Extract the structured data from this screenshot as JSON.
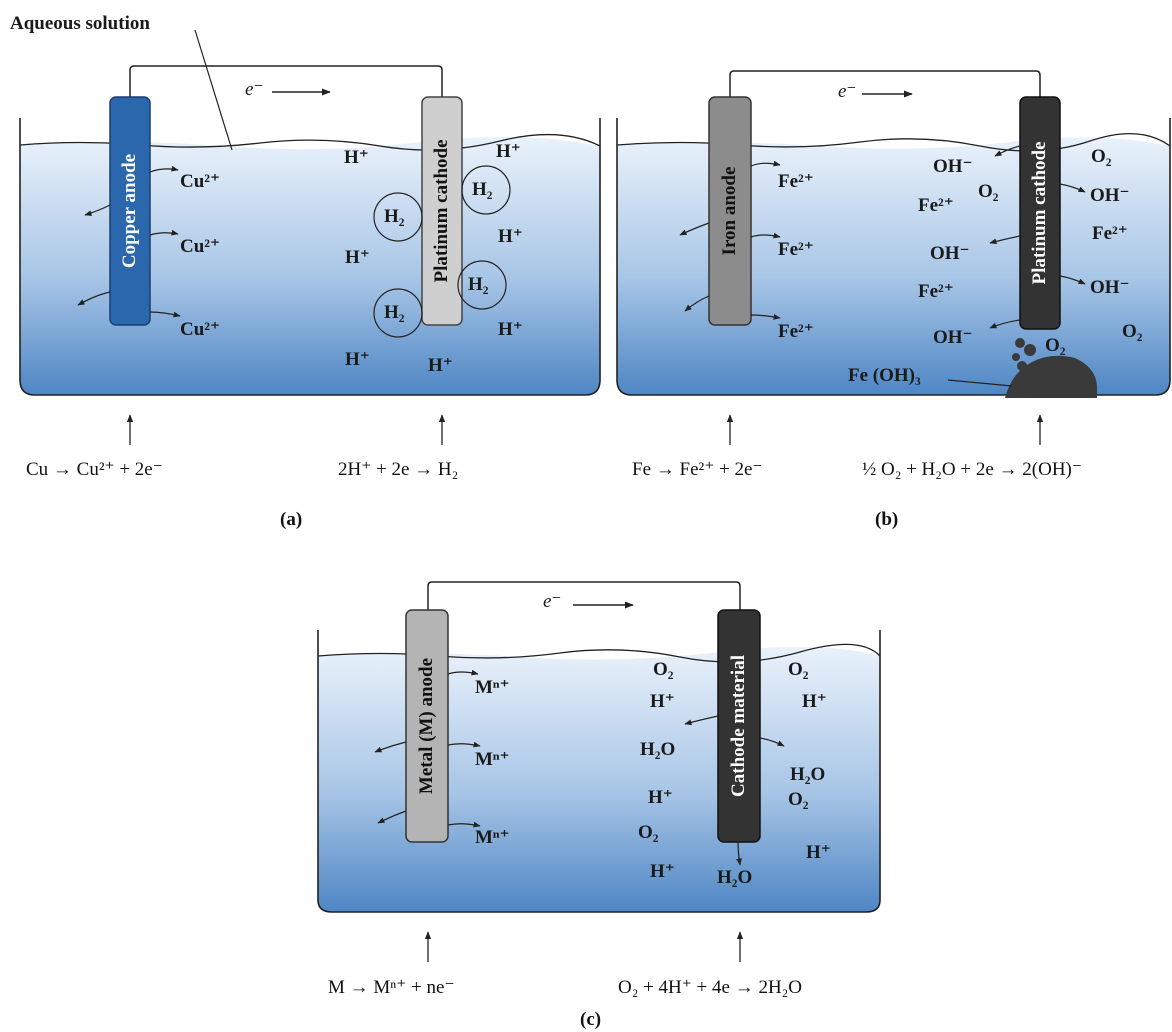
{
  "callout": {
    "aqueous": "Aqueous solution"
  },
  "electron": "e⁻",
  "panel_a": {
    "anode": "Copper anode",
    "cathode": "Platinum cathode",
    "ions": {
      "cu1": "Cu²⁺",
      "cu2": "Cu²⁺",
      "cu3": "Cu²⁺",
      "h1": "H⁺",
      "h2": "H⁺",
      "h3": "H⁺",
      "h4": "H⁺",
      "h5": "H⁺",
      "h6": "H⁺"
    },
    "bubbles": {
      "b1": "H₂",
      "b2": "H₂",
      "b3": "H₂",
      "b4": "H₂"
    },
    "anode_eq": "Cu → Cu²⁺ + 2e⁻",
    "cathode_eq": "2H⁺ + 2e → H₂",
    "caption": "(a)"
  },
  "panel_b": {
    "anode": "Iron anode",
    "cathode": "Platinum cathode",
    "ions": {
      "fe1": "Fe²⁺",
      "fe2": "Fe²⁺",
      "fe3": "Fe²⁺",
      "fe4": "Fe²⁺",
      "fe5": "Fe²⁺",
      "fe6": "Fe²⁺",
      "oh1": "OH⁻",
      "oh2": "OH⁻",
      "oh3": "OH⁻",
      "oh4": "OH⁻",
      "oh5": "OH⁻",
      "o2a": "O₂",
      "o2b": "O₂",
      "o2c": "O₂",
      "o2d": "O₂"
    },
    "precipitate": "Fe (OH)₃",
    "anode_eq": "Fe → Fe²⁺ + 2e⁻",
    "cathode_eq": "½ O₂ + H₂O + 2e → 2(OH)⁻",
    "caption": "(b)"
  },
  "panel_c": {
    "anode": "Metal (M) anode",
    "cathode": "Cathode material",
    "ions": {
      "m1": "Mⁿ⁺",
      "m2": "Mⁿ⁺",
      "m3": "Mⁿ⁺",
      "o2a": "O₂",
      "o2b": "O₂",
      "o2c": "O₂",
      "o2d": "O₂",
      "h1": "H⁺",
      "h2": "H⁺",
      "h3": "H⁺",
      "h4": "H⁺",
      "h5": "H⁺",
      "w1": "H₂O",
      "w2": "H₂O",
      "w3": "H₂O"
    },
    "anode_eq": "M → Mⁿ⁺ + ne⁻",
    "cathode_eq": "O₂ + 4H⁺ + 4e → 2H₂O",
    "caption": "(c)"
  },
  "colors": {
    "water_top": "#eaf2fb",
    "water_bottom": "#4e86c4",
    "copper_electrode": "#2a67ad",
    "platinum_electrode": "#cfcfcf",
    "iron_electrode": "#8c8c8c",
    "dark_cathode": "#333333",
    "precipitate": "#3a3a3a"
  }
}
